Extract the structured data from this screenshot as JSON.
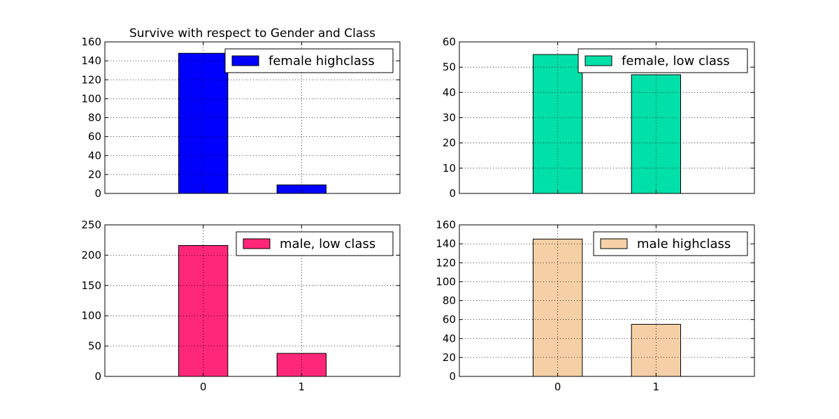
{
  "chart_data": [
    {
      "type": "bar",
      "title": "Survive with respect to Gender and Class",
      "categories": [
        "0",
        "1"
      ],
      "series": [
        {
          "name": "female highclass",
          "values": [
            148,
            9
          ]
        }
      ],
      "color": "#0000ff",
      "ylim": [
        0,
        160
      ],
      "yticks": [
        "0",
        "20",
        "40",
        "60",
        "80",
        "100",
        "120",
        "140",
        "160"
      ],
      "grid": true,
      "legend": "top-right",
      "xticklabels_visible": false
    },
    {
      "type": "bar",
      "title": "",
      "categories": [
        "0",
        "1"
      ],
      "series": [
        {
          "name": "female, low class",
          "values": [
            55,
            47
          ]
        }
      ],
      "color": "#00e0a8",
      "ylim": [
        0,
        60
      ],
      "yticks": [
        "0",
        "10",
        "20",
        "30",
        "40",
        "50",
        "60"
      ],
      "grid": true,
      "legend": "top-right",
      "xticklabels_visible": false
    },
    {
      "type": "bar",
      "title": "",
      "categories": [
        "0",
        "1"
      ],
      "series": [
        {
          "name": "male, low class",
          "values": [
            216,
            38
          ]
        }
      ],
      "color": "#ff2777",
      "ylim": [
        0,
        250
      ],
      "yticks": [
        "0",
        "50",
        "100",
        "150",
        "200",
        "250"
      ],
      "grid": true,
      "legend": "top-right",
      "xticklabels_visible": true
    },
    {
      "type": "bar",
      "title": "",
      "categories": [
        "0",
        "1"
      ],
      "series": [
        {
          "name": "male highclass",
          "values": [
            145,
            55
          ]
        }
      ],
      "color": "#f5d0a6",
      "ylim": [
        0,
        160
      ],
      "yticks": [
        "0",
        "20",
        "40",
        "60",
        "80",
        "100",
        "120",
        "140",
        "160"
      ],
      "grid": true,
      "legend": "top-right",
      "xticklabels_visible": true
    }
  ]
}
